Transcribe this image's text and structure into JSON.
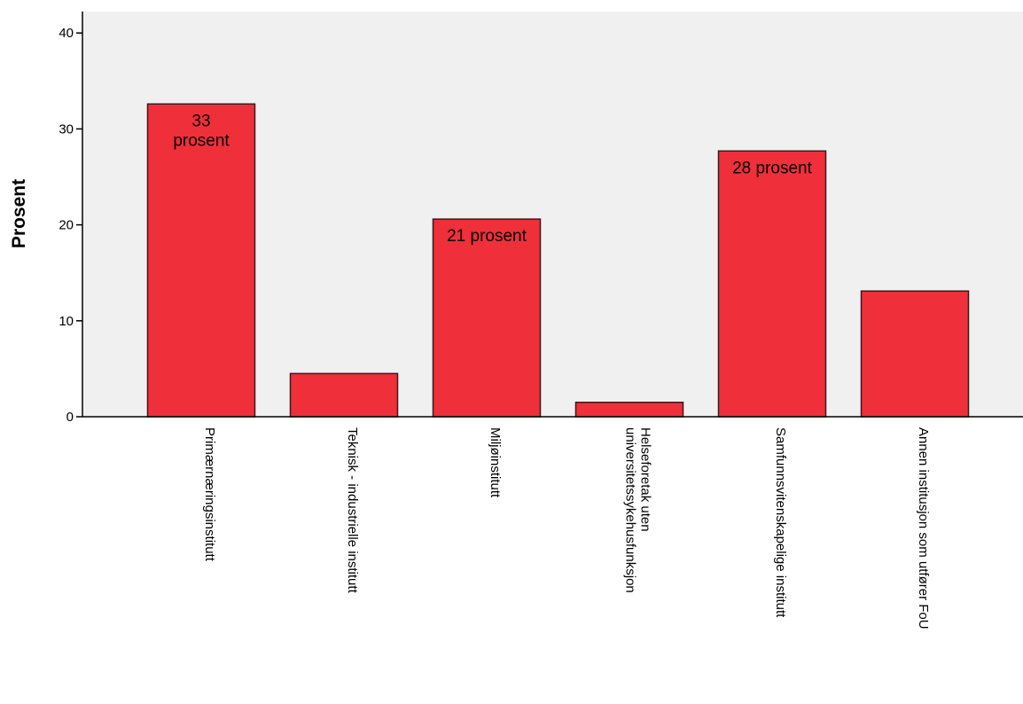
{
  "chart_data": {
    "type": "bar",
    "title": "",
    "xlabel": "",
    "ylabel": "Prosent",
    "ylim": [
      0,
      40
    ],
    "yticks": [
      0,
      10,
      20,
      30,
      40
    ],
    "grid": false,
    "categories": [
      [
        "Primærnæringsinstitutt"
      ],
      [
        "Teknisk - industrielle institutt"
      ],
      [
        "Miljøinstitutt"
      ],
      [
        "Helseforetak uten",
        "universitetssykehusfunksjon"
      ],
      [
        "Samfunnsvitenskapelige institutt"
      ],
      [
        "Annen institusjon som utfører FoU"
      ]
    ],
    "values": [
      32.6,
      4.5,
      20.6,
      1.5,
      27.7,
      13.1
    ],
    "data_labels": [
      [
        "33",
        "prosent"
      ],
      [],
      [
        "21 prosent"
      ],
      [],
      [
        "28 prosent"
      ],
      []
    ],
    "colors": {
      "bar_fill": "#ef2f3a",
      "bar_stroke": "#3a1a1a",
      "plot_background": "#f0f0f0",
      "axis": "#000000"
    }
  }
}
